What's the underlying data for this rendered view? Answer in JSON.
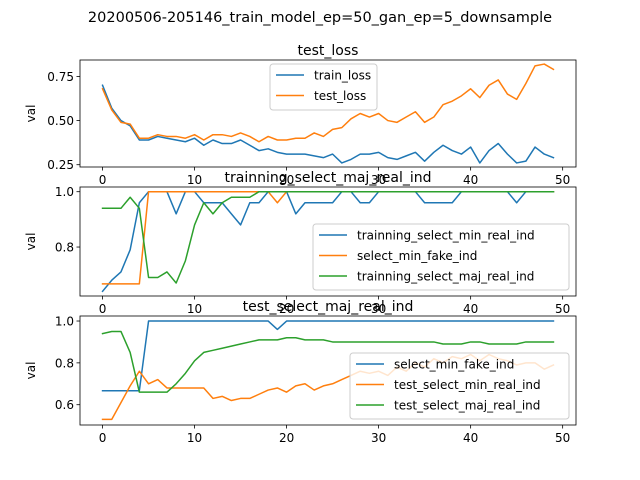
{
  "figure": {
    "suptitle": "20200506-205146_train_model_ep=50_gan_ep=5_downsample"
  },
  "chart_data": [
    {
      "type": "line",
      "title": "test_loss",
      "xlabel": "",
      "ylabel": "val",
      "xlim": [
        -2.45,
        51.45
      ],
      "ylim": [
        0.237,
        0.843
      ],
      "xticks": [
        0,
        10,
        20,
        30,
        40,
        50
      ],
      "yticks": [
        0.25,
        0.5,
        0.75
      ],
      "ytick_labels": [
        "0.25",
        "0.50",
        "0.75"
      ],
      "grid": false,
      "legend": "top-center",
      "x": [
        0,
        1,
        2,
        3,
        4,
        5,
        6,
        7,
        8,
        9,
        10,
        11,
        12,
        13,
        14,
        15,
        16,
        17,
        18,
        19,
        20,
        21,
        22,
        23,
        24,
        25,
        26,
        27,
        28,
        29,
        30,
        31,
        32,
        33,
        34,
        35,
        36,
        37,
        38,
        39,
        40,
        41,
        42,
        43,
        44,
        45,
        46,
        47,
        48,
        49
      ],
      "series": [
        {
          "name": "train_loss",
          "color": "#1f77b4",
          "values": [
            0.7,
            0.57,
            0.5,
            0.47,
            0.39,
            0.39,
            0.41,
            0.4,
            0.39,
            0.38,
            0.4,
            0.36,
            0.39,
            0.37,
            0.37,
            0.39,
            0.36,
            0.33,
            0.34,
            0.32,
            0.31,
            0.31,
            0.31,
            0.3,
            0.29,
            0.31,
            0.26,
            0.28,
            0.31,
            0.31,
            0.32,
            0.29,
            0.28,
            0.3,
            0.32,
            0.27,
            0.32,
            0.36,
            0.33,
            0.31,
            0.35,
            0.26,
            0.33,
            0.37,
            0.31,
            0.26,
            0.27,
            0.35,
            0.31,
            0.29
          ]
        },
        {
          "name": "test_loss",
          "color": "#ff7f0e",
          "values": [
            0.68,
            0.56,
            0.49,
            0.48,
            0.4,
            0.4,
            0.42,
            0.41,
            0.41,
            0.4,
            0.42,
            0.39,
            0.42,
            0.42,
            0.41,
            0.43,
            0.41,
            0.38,
            0.41,
            0.39,
            0.39,
            0.4,
            0.4,
            0.43,
            0.41,
            0.45,
            0.46,
            0.51,
            0.54,
            0.52,
            0.54,
            0.5,
            0.49,
            0.52,
            0.55,
            0.49,
            0.52,
            0.59,
            0.61,
            0.64,
            0.68,
            0.63,
            0.7,
            0.73,
            0.65,
            0.62,
            0.71,
            0.81,
            0.82,
            0.79
          ]
        }
      ]
    },
    {
      "type": "line",
      "title": "trainning_select_maj_real_ind",
      "xlabel": "",
      "ylabel": "val",
      "xlim": [
        -2.45,
        51.45
      ],
      "ylim": [
        0.623,
        1.017
      ],
      "xticks": [
        0,
        10,
        20,
        30,
        40,
        50
      ],
      "yticks": [
        0.8,
        1.0
      ],
      "ytick_labels": [
        "0.8",
        "1.0"
      ],
      "grid": false,
      "legend": "lower-right",
      "x": [
        0,
        1,
        2,
        3,
        4,
        5,
        6,
        7,
        8,
        9,
        10,
        11,
        12,
        13,
        14,
        15,
        16,
        17,
        18,
        19,
        20,
        21,
        22,
        23,
        24,
        25,
        26,
        27,
        28,
        29,
        30,
        31,
        32,
        33,
        34,
        35,
        36,
        37,
        38,
        39,
        40,
        41,
        42,
        43,
        44,
        45,
        46,
        47,
        48,
        49
      ],
      "series": [
        {
          "name": "trainning_select_min_real_ind",
          "color": "#1f77b4",
          "values": [
            0.64,
            0.68,
            0.71,
            0.79,
            0.96,
            1.0,
            1.0,
            1.0,
            0.92,
            1.0,
            1.0,
            0.96,
            0.96,
            0.96,
            0.92,
            0.88,
            0.96,
            0.96,
            1.0,
            1.0,
            1.0,
            0.92,
            0.96,
            0.96,
            0.96,
            0.96,
            1.0,
            1.0,
            0.96,
            0.96,
            1.0,
            1.0,
            1.0,
            1.0,
            1.0,
            0.96,
            0.96,
            0.96,
            0.96,
            1.0,
            1.0,
            1.0,
            1.0,
            1.0,
            1.0,
            0.96,
            1.0,
            1.0,
            1.0,
            1.0
          ]
        },
        {
          "name": "select_min_fake_ind",
          "color": "#ff7f0e",
          "values": [
            0.667,
            0.667,
            0.667,
            0.667,
            0.667,
            1.0,
            1.0,
            1.0,
            1.0,
            1.0,
            1.0,
            1.0,
            1.0,
            1.0,
            1.0,
            1.0,
            1.0,
            1.0,
            1.0,
            0.96,
            1.0,
            1.0,
            1.0,
            1.0,
            1.0,
            1.0,
            1.0,
            1.0,
            1.0,
            1.0,
            1.0,
            1.0,
            1.0,
            1.0,
            1.0,
            1.0,
            1.0,
            1.0,
            1.0,
            1.0,
            1.0,
            1.0,
            1.0,
            1.0,
            1.0,
            1.0,
            1.0,
            1.0,
            1.0,
            1.0
          ]
        },
        {
          "name": "trainning_select_maj_real_ind",
          "color": "#2ca02c",
          "values": [
            0.94,
            0.94,
            0.94,
            0.98,
            0.94,
            0.69,
            0.69,
            0.71,
            0.67,
            0.75,
            0.88,
            0.96,
            0.92,
            0.96,
            0.98,
            0.98,
            0.98,
            1.0,
            1.0,
            1.0,
            1.0,
            1.0,
            1.0,
            1.0,
            1.0,
            1.0,
            1.0,
            1.0,
            1.0,
            1.0,
            1.0,
            1.0,
            1.0,
            1.0,
            1.0,
            1.0,
            1.0,
            1.0,
            1.0,
            1.0,
            1.0,
            1.0,
            1.0,
            1.0,
            1.0,
            1.0,
            1.0,
            1.0,
            1.0,
            1.0
          ]
        }
      ]
    },
    {
      "type": "line",
      "title": "test_select_maj_real_ind",
      "xlabel": "",
      "ylabel": "val",
      "xlim": [
        -2.45,
        51.45
      ],
      "ylim": [
        0.503,
        1.024
      ],
      "xticks": [
        0,
        10,
        20,
        30,
        40,
        50
      ],
      "yticks": [
        0.6,
        0.8,
        1.0
      ],
      "ytick_labels": [
        "0.6",
        "0.8",
        "1.0"
      ],
      "grid": false,
      "legend": "lower-right",
      "x": [
        0,
        1,
        2,
        3,
        4,
        5,
        6,
        7,
        8,
        9,
        10,
        11,
        12,
        13,
        14,
        15,
        16,
        17,
        18,
        19,
        20,
        21,
        22,
        23,
        24,
        25,
        26,
        27,
        28,
        29,
        30,
        31,
        32,
        33,
        34,
        35,
        36,
        37,
        38,
        39,
        40,
        41,
        42,
        43,
        44,
        45,
        46,
        47,
        48,
        49
      ],
      "series": [
        {
          "name": "select_min_fake_ind",
          "color": "#1f77b4",
          "values": [
            0.667,
            0.667,
            0.667,
            0.667,
            0.667,
            1.0,
            1.0,
            1.0,
            1.0,
            1.0,
            1.0,
            1.0,
            1.0,
            1.0,
            1.0,
            1.0,
            1.0,
            1.0,
            1.0,
            0.96,
            1.0,
            1.0,
            1.0,
            1.0,
            1.0,
            1.0,
            1.0,
            1.0,
            1.0,
            1.0,
            1.0,
            1.0,
            1.0,
            1.0,
            1.0,
            1.0,
            1.0,
            1.0,
            1.0,
            1.0,
            1.0,
            1.0,
            1.0,
            1.0,
            1.0,
            1.0,
            1.0,
            1.0,
            1.0,
            1.0
          ]
        },
        {
          "name": "test_select_min_real_ind",
          "color": "#ff7f0e",
          "values": [
            0.53,
            0.53,
            0.61,
            0.69,
            0.76,
            0.7,
            0.72,
            0.68,
            0.68,
            0.68,
            0.68,
            0.68,
            0.63,
            0.64,
            0.62,
            0.63,
            0.63,
            0.65,
            0.67,
            0.68,
            0.66,
            0.69,
            0.7,
            0.67,
            0.69,
            0.7,
            0.72,
            0.74,
            0.76,
            0.75,
            0.76,
            0.74,
            0.78,
            0.76,
            0.8,
            0.78,
            0.82,
            0.8,
            0.83,
            0.82,
            0.84,
            0.81,
            0.84,
            0.82,
            0.81,
            0.79,
            0.8,
            0.8,
            0.77,
            0.79
          ]
        },
        {
          "name": "test_select_maj_real_ind",
          "color": "#2ca02c",
          "values": [
            0.94,
            0.95,
            0.95,
            0.85,
            0.66,
            0.66,
            0.66,
            0.66,
            0.7,
            0.75,
            0.81,
            0.85,
            0.86,
            0.87,
            0.88,
            0.89,
            0.9,
            0.91,
            0.91,
            0.91,
            0.92,
            0.92,
            0.91,
            0.91,
            0.91,
            0.9,
            0.9,
            0.9,
            0.9,
            0.9,
            0.9,
            0.9,
            0.9,
            0.9,
            0.9,
            0.9,
            0.9,
            0.89,
            0.89,
            0.89,
            0.9,
            0.9,
            0.89,
            0.89,
            0.89,
            0.89,
            0.9,
            0.9,
            0.9,
            0.9
          ]
        }
      ]
    }
  ]
}
